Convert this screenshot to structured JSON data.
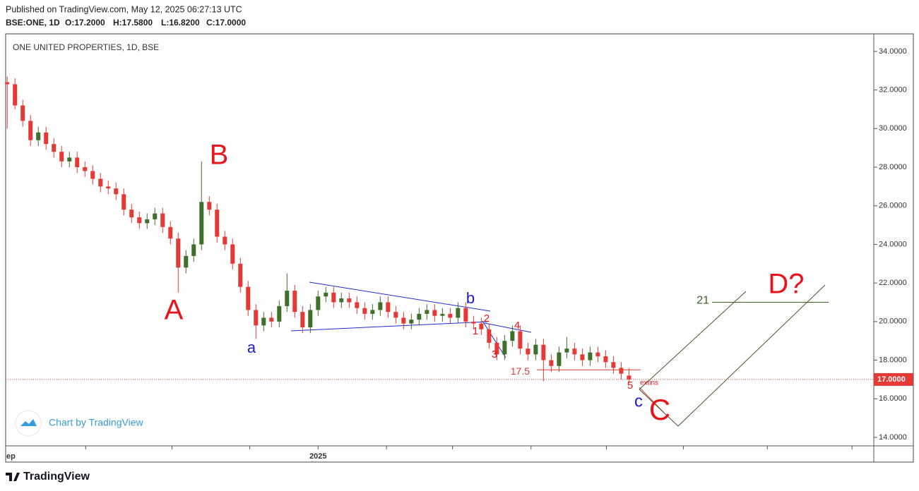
{
  "header": {
    "published": "Published on TradingView.com, May 12, 2025 06:27:13 UTC",
    "symbol": "BSE:ONE, 1D",
    "ohlc": [
      "O:17.2000",
      "H:17.5800",
      "L:16.8200",
      "C:17.0000"
    ]
  },
  "watermark": "Chart by TradingView",
  "footer_logo": "TradingView",
  "chart_data": {
    "type": "candlestick",
    "title": "ONE UNITED PROPERTIES, 1D, BSE",
    "up_color": "#3f6f2a",
    "down_color": "#e53935",
    "open": [
      32.4,
      32.3,
      31.2,
      30.4,
      29.4,
      29.8,
      29.2,
      28.8,
      28.3,
      28.5,
      28.0,
      27.8,
      27.4,
      27.0,
      26.9,
      26.6,
      25.8,
      25.4,
      25.1,
      25.3,
      25.6,
      24.9,
      24.3,
      22.8,
      23.4,
      24.0,
      26.2,
      25.8,
      24.4,
      24.0,
      23.0,
      21.8,
      20.6,
      19.8,
      20.2,
      20.0,
      20.8,
      21.6,
      20.5,
      19.7,
      20.6,
      21.3,
      21.5,
      21.0,
      21.2,
      21.0,
      20.7,
      20.4,
      20.6,
      21.0,
      20.5,
      20.2,
      19.9,
      20.1,
      20.4,
      20.6,
      20.3,
      20.4,
      20.2,
      20.7,
      20.0,
      19.9,
      19.6,
      18.9,
      18.3,
      19.0,
      19.5,
      18.6,
      18.3,
      18.8,
      18.0,
      17.7,
      18.4,
      18.6,
      18.3,
      18.0,
      18.4,
      18.2,
      17.9,
      17.6,
      17.2
    ],
    "high": [
      32.7,
      32.6,
      31.5,
      30.7,
      30.1,
      30.1,
      29.5,
      29.1,
      28.8,
      28.8,
      28.3,
      28.1,
      27.7,
      27.3,
      27.2,
      26.9,
      26.1,
      25.7,
      25.6,
      25.9,
      25.9,
      25.2,
      24.6,
      23.7,
      24.3,
      28.3,
      26.5,
      26.1,
      24.7,
      24.3,
      23.3,
      22.1,
      20.9,
      20.5,
      20.5,
      21.1,
      22.5,
      21.9,
      20.8,
      20.9,
      21.6,
      21.8,
      21.8,
      21.5,
      21.5,
      21.3,
      21.0,
      20.9,
      21.3,
      21.3,
      20.8,
      20.5,
      20.4,
      20.7,
      20.9,
      20.9,
      20.7,
      20.7,
      21.0,
      21.0,
      20.3,
      20.2,
      19.9,
      19.2,
      19.3,
      19.8,
      19.8,
      18.9,
      19.1,
      19.1,
      18.3,
      18.7,
      19.2,
      18.9,
      18.6,
      18.7,
      18.7,
      18.5,
      18.2,
      17.9,
      17.58
    ],
    "low": [
      30.0,
      31.0,
      30.1,
      29.1,
      29.1,
      28.9,
      28.5,
      28.0,
      28.0,
      27.7,
      27.5,
      27.1,
      26.7,
      26.6,
      26.3,
      25.5,
      25.1,
      24.8,
      24.8,
      25.0,
      24.6,
      24.0,
      21.5,
      22.5,
      23.1,
      23.7,
      25.5,
      24.1,
      23.7,
      22.7,
      21.5,
      20.3,
      19.1,
      19.5,
      19.7,
      19.7,
      20.5,
      20.2,
      19.4,
      19.4,
      20.3,
      21.0,
      20.7,
      20.7,
      20.7,
      20.4,
      20.1,
      20.1,
      20.3,
      20.2,
      19.9,
      19.6,
      19.6,
      19.8,
      20.1,
      20.0,
      20.0,
      19.9,
      19.9,
      19.7,
      19.6,
      19.3,
      18.6,
      18.0,
      18.0,
      18.7,
      18.3,
      18.0,
      18.0,
      16.9,
      17.4,
      17.4,
      18.1,
      18.0,
      17.7,
      17.7,
      17.9,
      17.6,
      17.3,
      17.0,
      16.82
    ],
    "close": [
      32.3,
      31.2,
      30.4,
      29.4,
      29.8,
      29.2,
      28.8,
      28.3,
      28.5,
      28.0,
      27.8,
      27.4,
      27.0,
      26.9,
      26.6,
      25.8,
      25.4,
      25.1,
      25.3,
      25.6,
      24.9,
      24.3,
      22.8,
      23.4,
      24.0,
      26.2,
      25.8,
      24.4,
      24.0,
      23.0,
      21.8,
      20.6,
      19.8,
      20.2,
      20.0,
      20.8,
      21.6,
      20.5,
      19.7,
      20.6,
      21.3,
      21.5,
      21.0,
      21.2,
      21.0,
      20.7,
      20.4,
      20.6,
      21.0,
      20.5,
      20.2,
      19.9,
      20.1,
      20.4,
      20.6,
      20.3,
      20.4,
      20.2,
      20.7,
      20.0,
      19.9,
      19.6,
      18.9,
      18.3,
      19.0,
      19.5,
      18.6,
      18.3,
      18.8,
      18.0,
      17.7,
      18.4,
      18.6,
      18.3,
      18.0,
      18.4,
      18.2,
      17.9,
      17.6,
      17.3,
      17.0
    ],
    "xlim": [
      -0.2,
      111.5
    ],
    "xticks": [
      {
        "value": -0.2,
        "label": "ep"
      },
      {
        "value": 10.1,
        "label": null
      },
      {
        "value": 21.2,
        "label": null
      },
      {
        "value": 31.2,
        "label": null
      },
      {
        "value": 40,
        "label": "2025"
      },
      {
        "value": 48.8,
        "label": null
      },
      {
        "value": 57.3,
        "label": null
      },
      {
        "value": 67.4,
        "label": null
      },
      {
        "value": 77.1,
        "label": null
      },
      {
        "value": 87,
        "label": null
      },
      {
        "value": 97.8,
        "label": null
      },
      {
        "value": 108.7,
        "label": null
      }
    ],
    "ylim": [
      13.56,
      34.91
    ],
    "yticks": [
      {
        "value": 14,
        "label": "14.0000"
      },
      {
        "value": 16,
        "label": "16.0000"
      },
      {
        "value": 18,
        "label": "18.0000"
      },
      {
        "value": 20,
        "label": "20.0000"
      },
      {
        "value": 22,
        "label": "22.0000"
      },
      {
        "value": 24,
        "label": "24.0000"
      },
      {
        "value": 26,
        "label": "26.0000"
      },
      {
        "value": 28,
        "label": "28.0000"
      },
      {
        "value": 30,
        "label": "30.0000"
      },
      {
        "value": 32,
        "label": "32.0000"
      },
      {
        "value": 34,
        "label": "34.0000"
      }
    ],
    "last_price": {
      "value": 17,
      "label": "17.0000"
    },
    "levels": [
      {
        "value": 17.5,
        "color": "#e53935"
      },
      {
        "value": 21,
        "color": "#3c5e24"
      }
    ],
    "wave_labels": [
      "A",
      "B",
      "a",
      "b",
      "c",
      "C",
      "D?",
      "1",
      "2",
      "3",
      "4",
      "5",
      "extins"
    ]
  }
}
